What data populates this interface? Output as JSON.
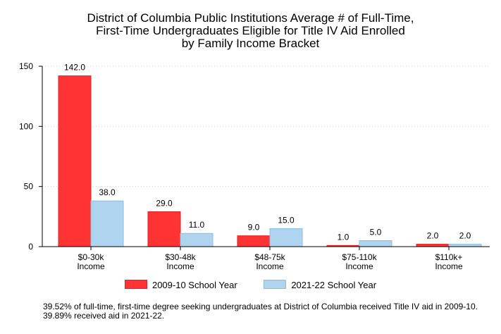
{
  "chart_data": {
    "type": "bar",
    "title_lines": [
      "District of Columbia Public Institutions Average # of Full-Time,",
      "First-Time Undergraduates Eligible for Title IV Aid Enrolled",
      "by Family Income Bracket"
    ],
    "categories": [
      [
        "$0-30k",
        "Income"
      ],
      [
        "$30-48k",
        "Income"
      ],
      [
        "$48-75k",
        "Income"
      ],
      [
        "$75-110k",
        "Income"
      ],
      [
        "$110k+",
        "Income"
      ]
    ],
    "series": [
      {
        "name": "2009-10 School Year",
        "color": "#ff3333",
        "stroke": "#e02020",
        "values": [
          142.0,
          29.0,
          9.0,
          1.0,
          2.0
        ]
      },
      {
        "name": "2021-22 School Year",
        "color": "#aed4f0",
        "stroke": "#8bbde0",
        "values": [
          38.0,
          11.0,
          15.0,
          5.0,
          2.0
        ]
      }
    ],
    "ylim": [
      0,
      150
    ],
    "yticks": [
      0,
      50,
      100,
      150
    ],
    "grid": true,
    "legend_position": "bottom",
    "xlabel": "",
    "ylabel": ""
  },
  "footnote": "39.52% of full-time, first-time degree seeking undergraduates at District of Columbia received Title IV aid in 2009-10. 39.89% received aid in 2021-22."
}
